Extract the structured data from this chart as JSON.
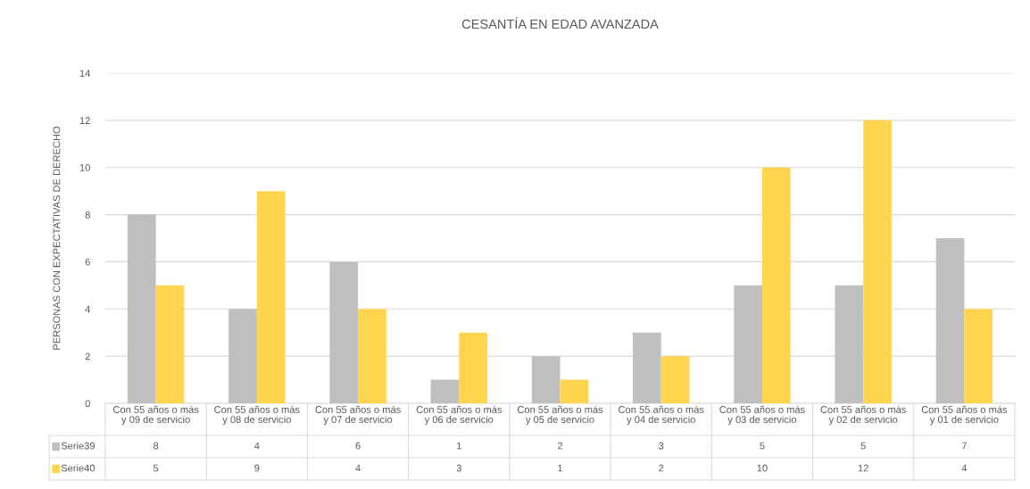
{
  "chart_data": {
    "type": "bar",
    "title": "CESANTÍA EN EDAD AVANZADA",
    "ylabel": "PERSONAS CON EXPECTATIVAS DE DERECHO",
    "categories": [
      "Con 55 años o más\ny 09 de servicio",
      "Con 55 años o más\ny 08 de servicio",
      "Con 55 años o más\ny 07 de servicio",
      "Con 55 años o más\ny 06 de servicio",
      "Con 55 años o más\ny 05 de servicio",
      "Con 55 años o más\ny 04 de servicio",
      "Con 55 años o más\ny 03 de servicio",
      "Con 55 años o más\ny 02 de servicio",
      "Con 55 años o más\ny 01 de servicio"
    ],
    "series": [
      {
        "name": "Serie39",
        "color": "#bfbfbf",
        "values": [
          8,
          4,
          6,
          1,
          2,
          3,
          5,
          5,
          7
        ]
      },
      {
        "name": "Serie40",
        "color": "#ffd44f",
        "values": [
          5,
          9,
          4,
          3,
          1,
          2,
          10,
          12,
          4
        ]
      }
    ],
    "ylim": [
      0,
      14
    ],
    "yticks": [
      0,
      2,
      4,
      6,
      8,
      10,
      12,
      14
    ],
    "grid": "y",
    "legend": "bottom",
    "data_labels": true
  }
}
